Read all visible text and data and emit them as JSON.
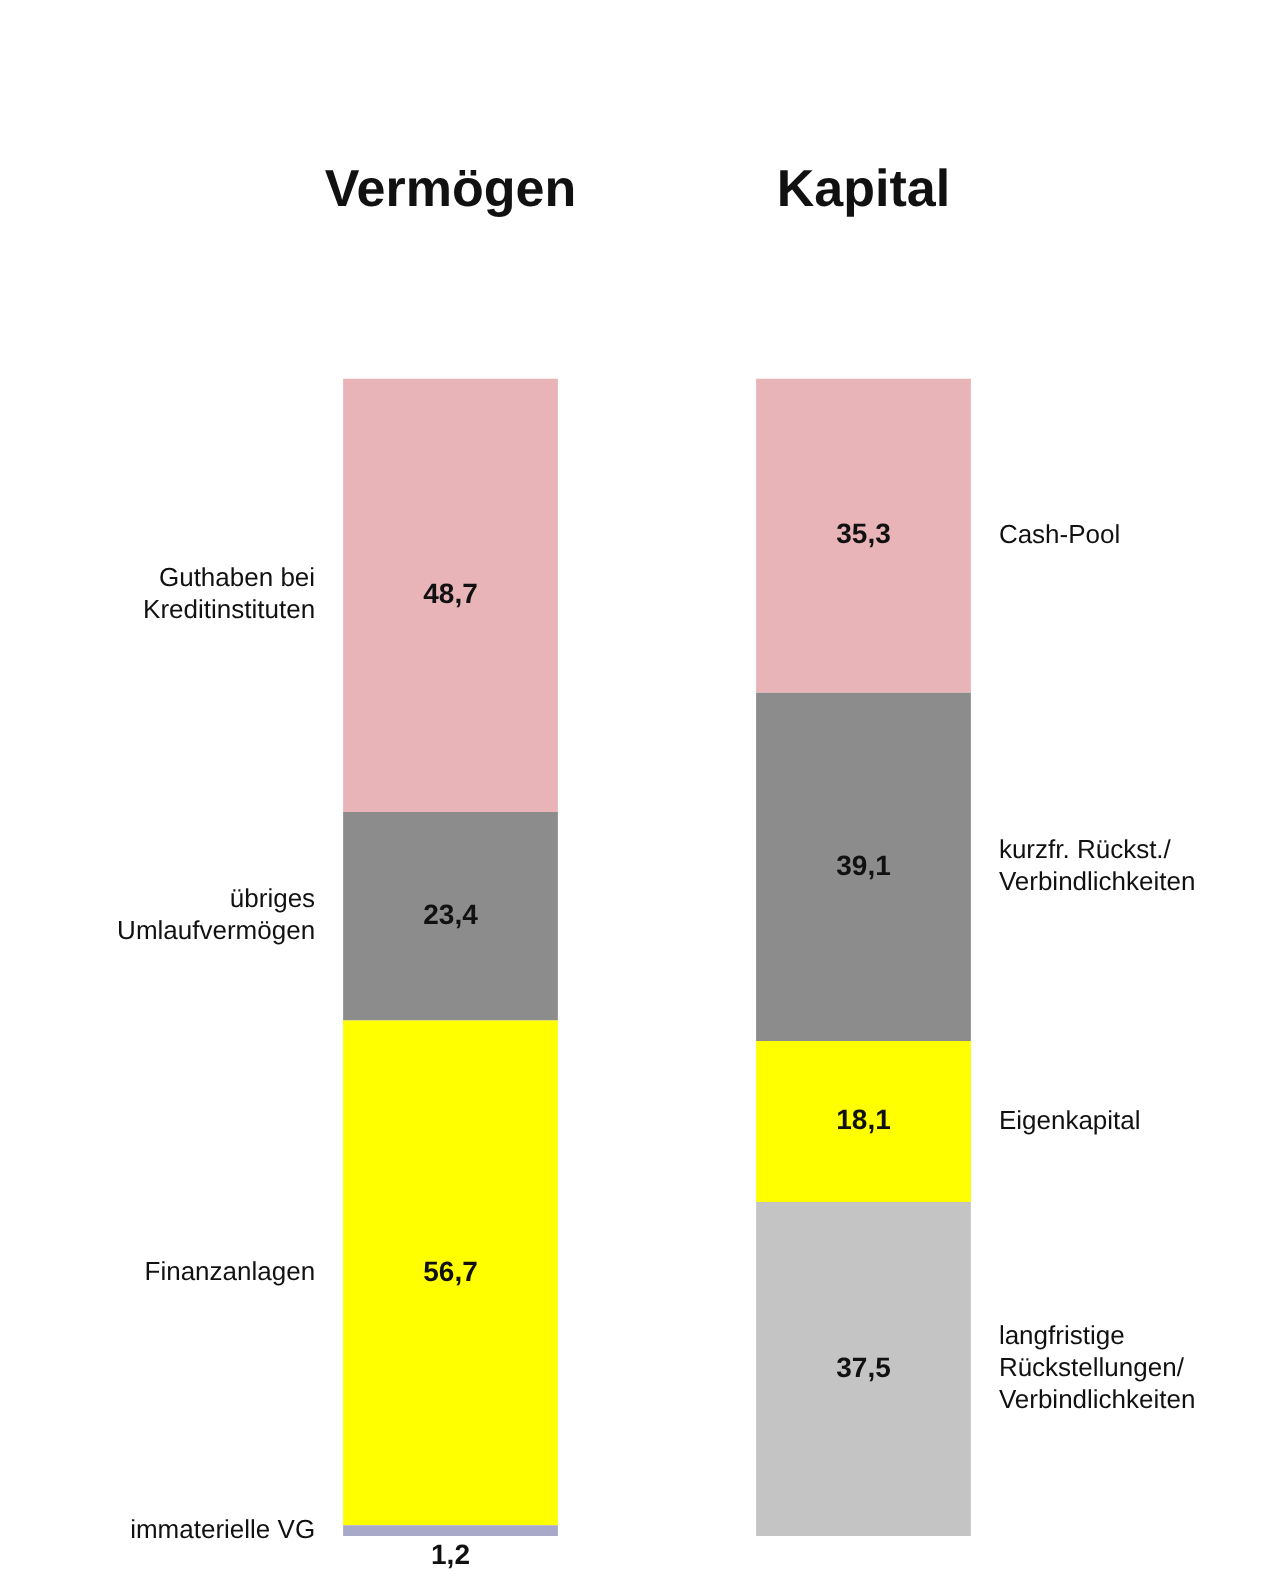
{
  "chart_data": {
    "type": "bar",
    "stacked": true,
    "categories": [
      "Vermögen",
      "Kapital"
    ],
    "ylim": [
      0,
      130
    ],
    "tick_labels": "x",
    "legend": false,
    "series": [
      {
        "name": "immaterielle VG",
        "color": "#a8a8c8",
        "values": [
          1.2,
          null
        ],
        "value_labels": [
          "1,2",
          null
        ]
      },
      {
        "name": "Finanzanlagen",
        "color": "#ffff00",
        "values": [
          56.7,
          null
        ],
        "value_labels": [
          "56,7",
          null
        ]
      },
      {
        "name": "übriges Umlaufvermögen",
        "color": "#8c8c8c",
        "values": [
          23.4,
          null
        ],
        "value_labels": [
          "23,4",
          null
        ]
      },
      {
        "name": "Guthaben bei Kreditinstituten",
        "color": "#e8b4b8",
        "values": [
          48.7,
          null
        ],
        "value_labels": [
          "48,7",
          null
        ]
      },
      {
        "name": "langfristige Rückstellungen/ Verbindlichkeiten",
        "color": "#c4c4c4",
        "values": [
          null,
          37.5
        ],
        "value_labels": [
          null,
          "37,5"
        ]
      },
      {
        "name": "Eigenkapital",
        "color": "#ffff00",
        "values": [
          null,
          18.1
        ],
        "value_labels": [
          null,
          "18,1"
        ]
      },
      {
        "name": "kurzfr. Rückst./ Verbindlichkeiten",
        "color": "#8c8c8c",
        "values": [
          null,
          39.1
        ],
        "value_labels": [
          null,
          "39,1"
        ]
      },
      {
        "name": "Cash-Pool",
        "color": "#e8b4b8",
        "values": [
          null,
          35.3
        ],
        "value_labels": [
          null,
          "35,3"
        ]
      }
    ]
  }
}
